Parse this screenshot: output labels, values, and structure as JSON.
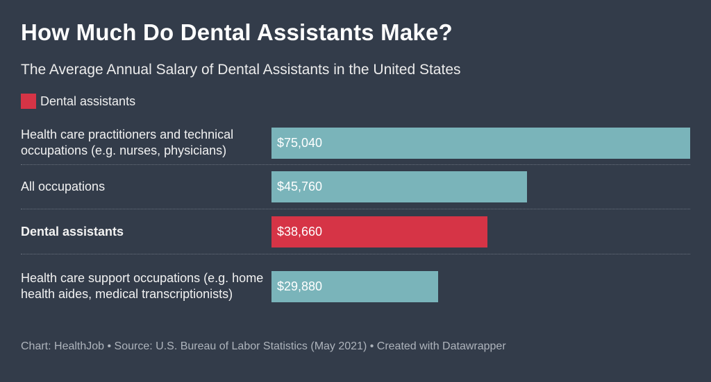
{
  "title": "How Much Do Dental Assistants Make?",
  "subtitle": "The Average Annual Salary of Dental Assistants in the United States",
  "legend": {
    "label": "Dental assistants",
    "color": "#d63446"
  },
  "colors": {
    "default_bar": "#7ab4ba",
    "highlight_bar": "#d63446",
    "background": "#333c4a"
  },
  "chart_data": {
    "type": "bar",
    "orientation": "horizontal",
    "title": "How Much Do Dental Assistants Make?",
    "subtitle": "The Average Annual Salary of Dental Assistants in the United States",
    "categories": [
      "Health care practitioners and technical occupations (e.g. nurses, physicians)",
      "All occupations",
      "Dental assistants",
      "Health care support occupations (e.g. home health aides, medical transcriptionists)"
    ],
    "values": [
      75040,
      45760,
      38660,
      29880
    ],
    "value_labels": [
      "$75,040",
      "$45,760",
      "$38,660",
      "$29,880"
    ],
    "highlighted": [
      false,
      false,
      true,
      false
    ],
    "xlim": [
      0,
      75040
    ],
    "grid": false,
    "legend_position": "top-left"
  },
  "footer": "Chart: HealthJob • Source: U.S. Bureau of Labor Statistics (May 2021) • Created with Datawrapper"
}
